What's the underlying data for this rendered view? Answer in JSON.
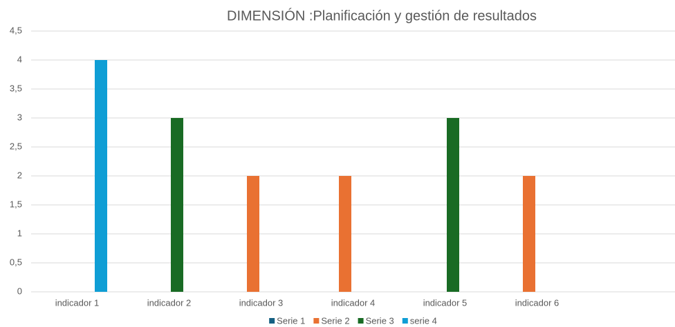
{
  "chart_data": {
    "type": "bar",
    "title": "DIMENSIÓN :Planificación  y gestión de resultados",
    "categories": [
      "indicador 1",
      "indicador 2",
      "indicador 3",
      "indicador 4",
      "indicador 5",
      "indicador 6",
      null
    ],
    "series": [
      {
        "name": "Serie 1",
        "color": "#156082",
        "values": [
          null,
          null,
          null,
          null,
          null,
          null,
          null
        ]
      },
      {
        "name": "Serie 2",
        "color": "#e97132",
        "values": [
          null,
          null,
          2,
          2,
          null,
          2,
          null
        ]
      },
      {
        "name": "Serie 3",
        "color": "#196b24",
        "values": [
          null,
          3,
          null,
          null,
          3,
          null,
          null
        ]
      },
      {
        "name": "serie 4",
        "color": "#0f9ed5",
        "values": [
          4,
          null,
          null,
          null,
          null,
          null,
          null
        ]
      }
    ],
    "ylim": [
      0,
      4.5
    ],
    "yticks": [
      0,
      {
        "value": 0.5,
        "label": "0,5"
      },
      1,
      {
        "value": 1.5,
        "label": "1,5"
      },
      2,
      {
        "value": 2.5,
        "label": "2,5"
      },
      3,
      {
        "value": 3.5,
        "label": "3,5"
      },
      4,
      {
        "value": 4.5,
        "label": "4,5"
      }
    ],
    "grid": true,
    "legend": "bottom"
  }
}
